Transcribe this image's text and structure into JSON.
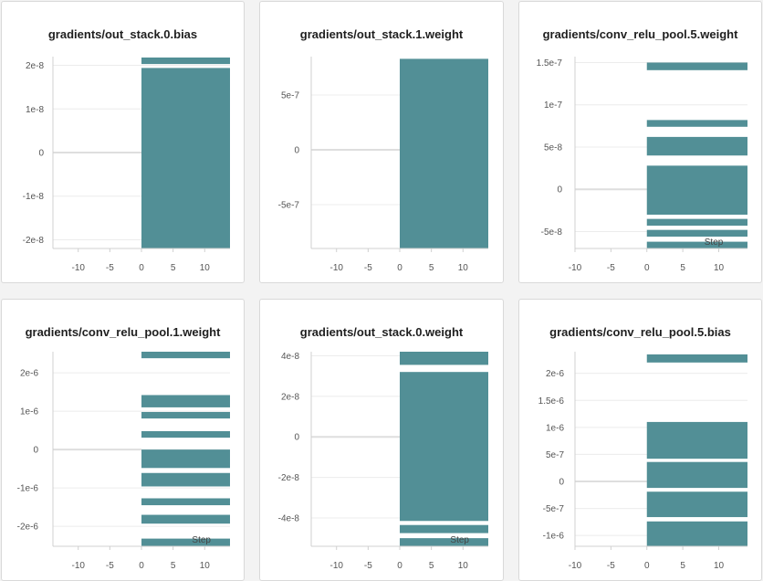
{
  "colors": {
    "band": "#528f96",
    "axis": "#d0d0d0",
    "grid": "#ececec",
    "zero": "#dedede"
  },
  "chart_data": [
    {
      "type": "area",
      "title": "gradients/out_stack.0.bias",
      "xlim": [
        -14,
        14
      ],
      "xticks": [
        -10,
        -5,
        0,
        5,
        10
      ],
      "ylim": [
        -2.2e-08,
        2.2e-08
      ],
      "yticks": [
        {
          "v": 2e-08,
          "label": "2e-8"
        },
        {
          "v": 1e-08,
          "label": "1e-8"
        },
        {
          "v": 0,
          "label": "0"
        },
        {
          "v": -1e-08,
          "label": "-1e-8"
        },
        {
          "v": -2e-08,
          "label": "-2e-8"
        }
      ],
      "x_range": [
        0,
        14
      ],
      "bands": [
        [
          2.18e-08,
          2.03e-08
        ],
        [
          1.94e-08,
          -2.2e-08
        ]
      ],
      "xlabel": ""
    },
    {
      "type": "area",
      "title": "gradients/out_stack.1.weight",
      "xlim": [
        -14,
        14
      ],
      "xticks": [
        -10,
        -5,
        0,
        5,
        10
      ],
      "ylim": [
        -9e-07,
        8.5e-07
      ],
      "yticks": [
        {
          "v": 5e-07,
          "label": "5e-7"
        },
        {
          "v": 0,
          "label": "0"
        },
        {
          "v": -5e-07,
          "label": "-5e-7"
        }
      ],
      "x_range": [
        0,
        14
      ],
      "bands": [
        [
          8.3e-07,
          -9e-07
        ]
      ],
      "xlabel": ""
    },
    {
      "type": "area",
      "title": "gradients/conv_relu_pool.5.weight",
      "xlim": [
        -10,
        14
      ],
      "xticks": [
        -10,
        -5,
        0,
        5,
        10
      ],
      "ylim": [
        -7e-08,
        1.57e-07
      ],
      "yticks": [
        {
          "v": 1.5e-07,
          "label": "1.5e-7"
        },
        {
          "v": 1e-07,
          "label": "1e-7"
        },
        {
          "v": 5e-08,
          "label": "5e-8"
        },
        {
          "v": 0,
          "label": "0"
        },
        {
          "v": -5e-08,
          "label": "-5e-8"
        }
      ],
      "x_range": [
        0,
        14
      ],
      "bands": [
        [
          1.5e-07,
          1.41e-07
        ],
        [
          8.2e-08,
          7.4e-08
        ],
        [
          6.2e-08,
          4e-08
        ],
        [
          2.8e-08,
          -3e-08
        ],
        [
          -3.5e-08,
          -4.3e-08
        ],
        [
          -4.8e-08,
          -5.6e-08
        ],
        [
          -6.2e-08,
          -7e-08
        ]
      ],
      "xlabel": "Step"
    },
    {
      "type": "area",
      "title": "gradients/conv_relu_pool.1.weight",
      "xlim": [
        -14,
        14
      ],
      "xticks": [
        -10,
        -5,
        0,
        5,
        10
      ],
      "ylim": [
        -2.52e-06,
        2.55e-06
      ],
      "yticks": [
        {
          "v": 2e-06,
          "label": "2e-6"
        },
        {
          "v": 1e-06,
          "label": "1e-6"
        },
        {
          "v": 0,
          "label": "0"
        },
        {
          "v": -1e-06,
          "label": "-1e-6"
        },
        {
          "v": -2e-06,
          "label": "-2e-6"
        }
      ],
      "x_range": [
        0,
        14
      ],
      "bands": [
        [
          2.55e-06,
          2.38e-06
        ],
        [
          1.42e-06,
          1.1e-06
        ],
        [
          9.8e-07,
          8.1e-07
        ],
        [
          4.8e-07,
          3.1e-07
        ],
        [
          0,
          -4.8e-07
        ],
        [
          -6.1e-07,
          -9.6e-07
        ],
        [
          -1.27e-06,
          -1.45e-06
        ],
        [
          -1.7e-06,
          -1.93e-06
        ],
        [
          -2.32e-06,
          -2.52e-06
        ]
      ],
      "xlabel": "Step"
    },
    {
      "type": "area",
      "title": "gradients/out_stack.0.weight",
      "xlim": [
        -14,
        14
      ],
      "xticks": [
        -10,
        -5,
        0,
        5,
        10
      ],
      "ylim": [
        -5.4e-08,
        4.2e-08
      ],
      "yticks": [
        {
          "v": 4e-08,
          "label": "4e-8"
        },
        {
          "v": 2e-08,
          "label": "2e-8"
        },
        {
          "v": 0,
          "label": "0"
        },
        {
          "v": -2e-08,
          "label": "-2e-8"
        },
        {
          "v": -4e-08,
          "label": "-4e-8"
        }
      ],
      "x_range": [
        0,
        14
      ],
      "bands": [
        [
          4.2e-08,
          3.55e-08
        ],
        [
          3.2e-08,
          -4.15e-08
        ],
        [
          -4.35e-08,
          -4.75e-08
        ],
        [
          -5e-08,
          -5.4e-08
        ]
      ],
      "xlabel": "Step"
    },
    {
      "type": "area",
      "title": "gradients/conv_relu_pool.5.bias",
      "xlim": [
        -10,
        14
      ],
      "xticks": [
        -10,
        -5,
        0,
        5,
        10
      ],
      "ylim": [
        -1.2e-06,
        2.4e-06
      ],
      "yticks": [
        {
          "v": 2e-06,
          "label": "2e-6"
        },
        {
          "v": 1.5e-06,
          "label": "1.5e-6"
        },
        {
          "v": 1e-06,
          "label": "1e-6"
        },
        {
          "v": 5e-07,
          "label": "5e-7"
        },
        {
          "v": 0,
          "label": "0"
        },
        {
          "v": -5e-07,
          "label": "-5e-7"
        },
        {
          "v": -1e-06,
          "label": "-1e-6"
        }
      ],
      "x_range": [
        0,
        14
      ],
      "bands": [
        [
          2.35e-06,
          2.2e-06
        ],
        [
          1.1e-06,
          4.2e-07
        ],
        [
          3.6e-07,
          -1.2e-07
        ],
        [
          -1.9e-07,
          -6.6e-07
        ],
        [
          -7.4e-07,
          -1.2e-06
        ]
      ],
      "xlabel": ""
    }
  ]
}
